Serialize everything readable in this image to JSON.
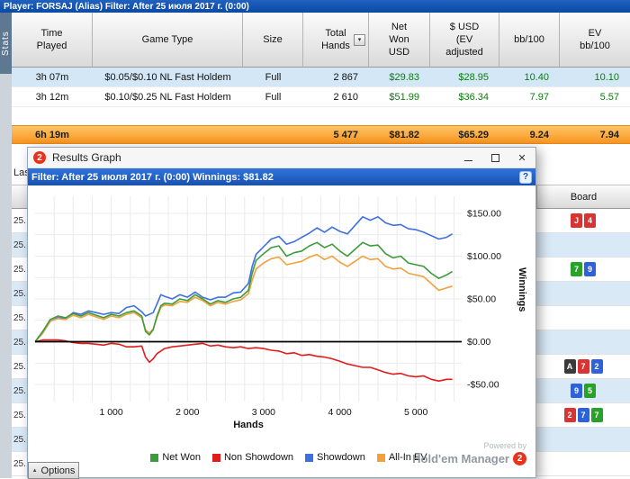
{
  "top_bar": {
    "text": "Player: FORSAJ (Alias)   Filter: After 25 июля 2017 г. (0:00)"
  },
  "stats_tab": "Stats",
  "icons": {
    "sort": "▾",
    "close": "✕",
    "help": "?",
    "options_arrow": "▲"
  },
  "report": {
    "columns": [
      "Time\nPlayed",
      "Game Type",
      "Size",
      "Total\nHands",
      "Net\nWon\nUSD",
      "$ USD\n(EV\nadjusted",
      "bb/100",
      "EV\nbb/100"
    ],
    "rows": [
      {
        "time": "3h 07m",
        "game": "$0.05/$0.10 NL Fast Holdem",
        "size": "Full",
        "hands": "2 867",
        "net_won": "$29.83",
        "ev_usd": "$28.95",
        "bb100": "10.40",
        "ev_bb100": "10.10"
      },
      {
        "time": "3h 12m",
        "game": "$0.10/$0.25 NL Fast Holdem",
        "size": "Full",
        "hands": "2 610",
        "net_won": "$51.99",
        "ev_usd": "$36.34",
        "bb100": "7.97",
        "ev_bb100": "5.57"
      }
    ],
    "totals": {
      "time": "6h 19m",
      "game": "",
      "size": "",
      "hands": "5 477",
      "net_won": "$81.82",
      "ev_usd": "$65.29",
      "bb100": "9.24",
      "ev_bb100": "7.94"
    }
  },
  "background": {
    "left_partial": "Las",
    "board_header": "Board",
    "left_rows": [
      "25.",
      "25.",
      "25.",
      "25.",
      "25.",
      "25.",
      "25.",
      "25.",
      "25.",
      "25.",
      "25."
    ],
    "card_colors": {
      "red": "#d83434",
      "green": "#28a228",
      "blue": "#2f62d8",
      "black": "#3a3a3a"
    },
    "rows": [
      {
        "cards": [
          {
            "r": "J",
            "c": "red"
          },
          {
            "r": "4",
            "c": "red"
          }
        ]
      },
      {
        "cards": []
      },
      {
        "cards": [
          {
            "r": "7",
            "c": "green"
          },
          {
            "r": "9",
            "c": "blue"
          }
        ]
      },
      {
        "cards": []
      },
      {
        "cards": []
      },
      {
        "cards": []
      },
      {
        "cards": [
          {
            "r": "A",
            "c": "black"
          },
          {
            "r": "7",
            "c": "red"
          },
          {
            "r": "2",
            "c": "blue"
          }
        ]
      },
      {
        "cards": [
          {
            "r": "9",
            "c": "blue"
          },
          {
            "r": "5",
            "c": "green"
          }
        ]
      },
      {
        "cards": [
          {
            "r": "2",
            "c": "red"
          },
          {
            "r": "7",
            "c": "blue"
          },
          {
            "r": "7",
            "c": "green"
          }
        ]
      },
      {
        "cards": []
      },
      {
        "cards": []
      }
    ]
  },
  "popup": {
    "icon_text": "2",
    "title": "Results Graph",
    "filter_text": "Filter: After 25 июля 2017 г. (0:00) Winnings: $81.82",
    "options_label": "Options",
    "powered_by": "Powered by",
    "brand": "Hold'em Manager",
    "brand_num": "2"
  },
  "chart_data": {
    "type": "line",
    "xlabel": "Hands",
    "ylabel": "Winnings",
    "xlim": [
      0,
      5600
    ],
    "ylim": [
      -70,
      170
    ],
    "grid": {
      "x_step": 250,
      "y_step": 25
    },
    "draw_order": [
      2,
      3,
      0,
      1
    ],
    "zero_line_color": "#000000",
    "xticks": [
      {
        "v": 1000,
        "label": "1 000"
      },
      {
        "v": 2000,
        "label": "2 000"
      },
      {
        "v": 3000,
        "label": "3 000"
      },
      {
        "v": 4000,
        "label": "4 000"
      },
      {
        "v": 5000,
        "label": "5 000"
      }
    ],
    "yticks": [
      {
        "v": 150,
        "label": "$150.00"
      },
      {
        "v": 100,
        "label": "$100.00"
      },
      {
        "v": 50,
        "label": "$50.00"
      },
      {
        "v": 0,
        "label": "$0.00"
      },
      {
        "v": -50,
        "label": "-$50.00"
      }
    ],
    "series": [
      {
        "name": "Net Won",
        "color": "#3c9b3c",
        "final_value": 81.82,
        "points": [
          [
            0,
            0
          ],
          [
            100,
            12
          ],
          [
            200,
            26
          ],
          [
            300,
            30
          ],
          [
            400,
            28
          ],
          [
            500,
            33
          ],
          [
            600,
            30
          ],
          [
            700,
            34
          ],
          [
            800,
            31
          ],
          [
            900,
            28
          ],
          [
            1000,
            32
          ],
          [
            1100,
            30
          ],
          [
            1200,
            34
          ],
          [
            1300,
            36
          ],
          [
            1400,
            30
          ],
          [
            1450,
            12
          ],
          [
            1500,
            8
          ],
          [
            1550,
            14
          ],
          [
            1600,
            30
          ],
          [
            1650,
            42
          ],
          [
            1700,
            45
          ],
          [
            1800,
            44
          ],
          [
            1900,
            50
          ],
          [
            2000,
            48
          ],
          [
            2100,
            55
          ],
          [
            2200,
            50
          ],
          [
            2300,
            44
          ],
          [
            2400,
            48
          ],
          [
            2500,
            46
          ],
          [
            2600,
            50
          ],
          [
            2700,
            52
          ],
          [
            2800,
            60
          ],
          [
            2850,
            80
          ],
          [
            2900,
            95
          ],
          [
            3000,
            103
          ],
          [
            3100,
            110
          ],
          [
            3200,
            112
          ],
          [
            3300,
            100
          ],
          [
            3400,
            104
          ],
          [
            3500,
            106
          ],
          [
            3600,
            112
          ],
          [
            3700,
            116
          ],
          [
            3800,
            110
          ],
          [
            3900,
            114
          ],
          [
            4000,
            106
          ],
          [
            4100,
            100
          ],
          [
            4200,
            108
          ],
          [
            4300,
            116
          ],
          [
            4400,
            112
          ],
          [
            4500,
            113
          ],
          [
            4600,
            103
          ],
          [
            4700,
            98
          ],
          [
            4800,
            100
          ],
          [
            4900,
            92
          ],
          [
            5000,
            90
          ],
          [
            5100,
            88
          ],
          [
            5200,
            80
          ],
          [
            5300,
            74
          ],
          [
            5400,
            78
          ],
          [
            5477,
            82
          ]
        ]
      },
      {
        "name": "Non Showdown",
        "color": "#e21b1b",
        "points": [
          [
            0,
            0
          ],
          [
            100,
            2
          ],
          [
            200,
            2
          ],
          [
            300,
            2
          ],
          [
            400,
            1
          ],
          [
            500,
            -1
          ],
          [
            600,
            -2
          ],
          [
            700,
            -2
          ],
          [
            800,
            -3
          ],
          [
            900,
            -4
          ],
          [
            1000,
            -2
          ],
          [
            1100,
            -3
          ],
          [
            1200,
            -6
          ],
          [
            1300,
            -6
          ],
          [
            1400,
            -5
          ],
          [
            1450,
            -18
          ],
          [
            1500,
            -24
          ],
          [
            1550,
            -20
          ],
          [
            1600,
            -14
          ],
          [
            1700,
            -8
          ],
          [
            1800,
            -6
          ],
          [
            1900,
            -5
          ],
          [
            2000,
            -4
          ],
          [
            2100,
            -3
          ],
          [
            2200,
            -2
          ],
          [
            2300,
            -5
          ],
          [
            2400,
            -4
          ],
          [
            2500,
            -6
          ],
          [
            2600,
            -7
          ],
          [
            2700,
            -6
          ],
          [
            2800,
            -8
          ],
          [
            2900,
            -7
          ],
          [
            3000,
            -8
          ],
          [
            3100,
            -10
          ],
          [
            3200,
            -11
          ],
          [
            3300,
            -14
          ],
          [
            3400,
            -13
          ],
          [
            3500,
            -16
          ],
          [
            3600,
            -15
          ],
          [
            3700,
            -17
          ],
          [
            3800,
            -18
          ],
          [
            3900,
            -20
          ],
          [
            4000,
            -23
          ],
          [
            4100,
            -26
          ],
          [
            4200,
            -28
          ],
          [
            4300,
            -30
          ],
          [
            4400,
            -30
          ],
          [
            4500,
            -33
          ],
          [
            4600,
            -36
          ],
          [
            4700,
            -38
          ],
          [
            4800,
            -37
          ],
          [
            4900,
            -40
          ],
          [
            5000,
            -41
          ],
          [
            5100,
            -40
          ],
          [
            5200,
            -44
          ],
          [
            5300,
            -46
          ],
          [
            5400,
            -44
          ],
          [
            5477,
            -44
          ]
        ]
      },
      {
        "name": "Showdown",
        "color": "#3e6fe0",
        "points": [
          [
            0,
            0
          ],
          [
            100,
            10
          ],
          [
            200,
            24
          ],
          [
            300,
            28
          ],
          [
            400,
            27
          ],
          [
            500,
            34
          ],
          [
            600,
            32
          ],
          [
            700,
            36
          ],
          [
            800,
            34
          ],
          [
            900,
            32
          ],
          [
            1000,
            34
          ],
          [
            1100,
            33
          ],
          [
            1200,
            40
          ],
          [
            1300,
            42
          ],
          [
            1400,
            35
          ],
          [
            1450,
            30
          ],
          [
            1500,
            32
          ],
          [
            1550,
            34
          ],
          [
            1600,
            44
          ],
          [
            1650,
            55
          ],
          [
            1700,
            53
          ],
          [
            1800,
            50
          ],
          [
            1900,
            55
          ],
          [
            2000,
            52
          ],
          [
            2100,
            58
          ],
          [
            2200,
            52
          ],
          [
            2300,
            49
          ],
          [
            2400,
            52
          ],
          [
            2500,
            52
          ],
          [
            2600,
            57
          ],
          [
            2700,
            58
          ],
          [
            2800,
            68
          ],
          [
            2850,
            88
          ],
          [
            2900,
            102
          ],
          [
            3000,
            111
          ],
          [
            3100,
            120
          ],
          [
            3200,
            123
          ],
          [
            3300,
            114
          ],
          [
            3400,
            117
          ],
          [
            3500,
            122
          ],
          [
            3600,
            127
          ],
          [
            3700,
            133
          ],
          [
            3800,
            128
          ],
          [
            3900,
            134
          ],
          [
            4000,
            129
          ],
          [
            4100,
            126
          ],
          [
            4200,
            136
          ],
          [
            4300,
            146
          ],
          [
            4400,
            142
          ],
          [
            4500,
            146
          ],
          [
            4600,
            139
          ],
          [
            4700,
            136
          ],
          [
            4800,
            137
          ],
          [
            4900,
            132
          ],
          [
            5000,
            131
          ],
          [
            5100,
            128
          ],
          [
            5200,
            124
          ],
          [
            5300,
            120
          ],
          [
            5400,
            122
          ],
          [
            5477,
            126
          ]
        ]
      },
      {
        "name": "All-In EV",
        "color": "#f2a13a",
        "final_value": 65.29,
        "points": [
          [
            0,
            0
          ],
          [
            100,
            10
          ],
          [
            200,
            24
          ],
          [
            300,
            27
          ],
          [
            400,
            26
          ],
          [
            500,
            31
          ],
          [
            600,
            28
          ],
          [
            700,
            32
          ],
          [
            800,
            29
          ],
          [
            900,
            26
          ],
          [
            1000,
            30
          ],
          [
            1100,
            28
          ],
          [
            1200,
            32
          ],
          [
            1300,
            34
          ],
          [
            1400,
            28
          ],
          [
            1450,
            14
          ],
          [
            1500,
            10
          ],
          [
            1550,
            15
          ],
          [
            1600,
            28
          ],
          [
            1650,
            40
          ],
          [
            1700,
            43
          ],
          [
            1800,
            42
          ],
          [
            1900,
            47
          ],
          [
            2000,
            46
          ],
          [
            2100,
            52
          ],
          [
            2200,
            48
          ],
          [
            2300,
            42
          ],
          [
            2400,
            46
          ],
          [
            2500,
            44
          ],
          [
            2600,
            47
          ],
          [
            2700,
            49
          ],
          [
            2800,
            56
          ],
          [
            2850,
            72
          ],
          [
            2900,
            85
          ],
          [
            3000,
            92
          ],
          [
            3100,
            97
          ],
          [
            3200,
            99
          ],
          [
            3300,
            90
          ],
          [
            3400,
            92
          ],
          [
            3500,
            94
          ],
          [
            3600,
            99
          ],
          [
            3700,
            102
          ],
          [
            3800,
            96
          ],
          [
            3900,
            100
          ],
          [
            4000,
            93
          ],
          [
            4100,
            88
          ],
          [
            4200,
            94
          ],
          [
            4300,
            100
          ],
          [
            4400,
            96
          ],
          [
            4500,
            97
          ],
          [
            4600,
            88
          ],
          [
            4700,
            85
          ],
          [
            4800,
            86
          ],
          [
            4900,
            80
          ],
          [
            5000,
            78
          ],
          [
            5100,
            76
          ],
          [
            5200,
            68
          ],
          [
            5300,
            60
          ],
          [
            5400,
            63
          ],
          [
            5477,
            65
          ]
        ]
      }
    ]
  }
}
